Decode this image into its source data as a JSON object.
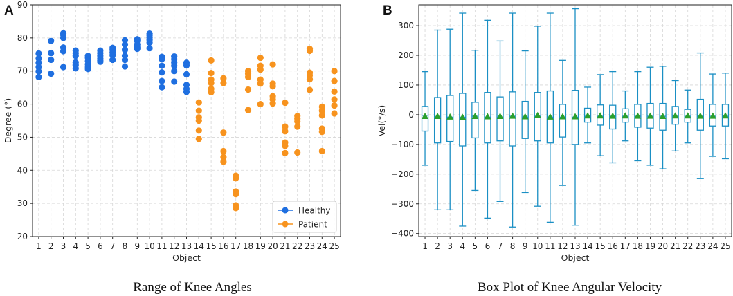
{
  "chart_data": [
    {
      "type": "scatter",
      "panel": "A",
      "caption": "Range of Knee Angles",
      "xlabel": "Object",
      "ylabel": "Degree (°)",
      "xlim": [
        0.5,
        25.5
      ],
      "ylim": [
        20,
        90
      ],
      "yticks": [
        20,
        30,
        40,
        50,
        60,
        70,
        80,
        90
      ],
      "categories": [
        "1",
        "2",
        "3",
        "4",
        "5",
        "6",
        "7",
        "8",
        "9",
        "10",
        "11",
        "12",
        "13",
        "14",
        "15",
        "16",
        "17",
        "18",
        "19",
        "20",
        "21",
        "22",
        "23",
        "24",
        "25"
      ],
      "grid": true,
      "legend_position": "lower-right",
      "series": [
        {
          "name": "Healthy",
          "color": "#1f6fe0",
          "points": [
            [
              1,
              75.3
            ],
            [
              1,
              73.8
            ],
            [
              1,
              72.5
            ],
            [
              1,
              71.2
            ],
            [
              1,
              69.9
            ],
            [
              1,
              68.2
            ],
            [
              2,
              79.1
            ],
            [
              2,
              75.4
            ],
            [
              2,
              73.4
            ],
            [
              2,
              69.2
            ],
            [
              3,
              81.4
            ],
            [
              3,
              80.9
            ],
            [
              3,
              80.0
            ],
            [
              3,
              77.1
            ],
            [
              3,
              76.0
            ],
            [
              3,
              71.2
            ],
            [
              4,
              76.2
            ],
            [
              4,
              75.4
            ],
            [
              4,
              74.6
            ],
            [
              4,
              72.6
            ],
            [
              4,
              71.8
            ],
            [
              4,
              70.8
            ],
            [
              5,
              74.6
            ],
            [
              5,
              74.0
            ],
            [
              5,
              73.0
            ],
            [
              5,
              72.0
            ],
            [
              5,
              71.2
            ],
            [
              5,
              70.6
            ],
            [
              6,
              76.2
            ],
            [
              6,
              75.4
            ],
            [
              6,
              74.6
            ],
            [
              6,
              73.8
            ],
            [
              6,
              73.2
            ],
            [
              6,
              72.8
            ],
            [
              7,
              77.0
            ],
            [
              7,
              76.4
            ],
            [
              7,
              75.6
            ],
            [
              7,
              74.8
            ],
            [
              7,
              73.4
            ],
            [
              8,
              79.3
            ],
            [
              8,
              78.0
            ],
            [
              8,
              76.4
            ],
            [
              8,
              74.6
            ],
            [
              8,
              73.4
            ],
            [
              8,
              71.4
            ],
            [
              9,
              79.6
            ],
            [
              9,
              79.1
            ],
            [
              9,
              78.0
            ],
            [
              9,
              77.2
            ],
            [
              9,
              76.7
            ],
            [
              10,
              81.3
            ],
            [
              10,
              80.8
            ],
            [
              10,
              80.1
            ],
            [
              10,
              79.4
            ],
            [
              10,
              78.6
            ],
            [
              10,
              76.9
            ],
            [
              11,
              74.3
            ],
            [
              11,
              73.6
            ],
            [
              11,
              71.6
            ],
            [
              11,
              69.6
            ],
            [
              11,
              67.0
            ],
            [
              11,
              65.1
            ],
            [
              12,
              74.4
            ],
            [
              12,
              73.6
            ],
            [
              12,
              72.6
            ],
            [
              12,
              71.6
            ],
            [
              12,
              70.0
            ],
            [
              12,
              66.8
            ],
            [
              13,
              72.5
            ],
            [
              13,
              71.7
            ],
            [
              13,
              69.0
            ],
            [
              13,
              65.8
            ],
            [
              13,
              64.6
            ],
            [
              13,
              63.7
            ]
          ]
        },
        {
          "name": "Patient",
          "color": "#f7931e",
          "points": [
            [
              14,
              60.5
            ],
            [
              14,
              58.0
            ],
            [
              14,
              56.0
            ],
            [
              14,
              55.0
            ],
            [
              14,
              52.0
            ],
            [
              14,
              49.5
            ],
            [
              15,
              73.2
            ],
            [
              15,
              69.4
            ],
            [
              15,
              67.4
            ],
            [
              15,
              66.4
            ],
            [
              15,
              64.6
            ],
            [
              15,
              63.6
            ],
            [
              16,
              67.8
            ],
            [
              16,
              66.4
            ],
            [
              16,
              51.4
            ],
            [
              16,
              45.8
            ],
            [
              16,
              44.0
            ],
            [
              16,
              42.6
            ],
            [
              17,
              38.4
            ],
            [
              17,
              37.6
            ],
            [
              17,
              33.6
            ],
            [
              17,
              32.8
            ],
            [
              17,
              29.4
            ],
            [
              17,
              28.6
            ],
            [
              18,
              70.0
            ],
            [
              18,
              69.2
            ],
            [
              18,
              68.2
            ],
            [
              18,
              64.4
            ],
            [
              18,
              58.2
            ],
            [
              19,
              74.0
            ],
            [
              19,
              71.6
            ],
            [
              19,
              70.4
            ],
            [
              19,
              67.4
            ],
            [
              19,
              66.2
            ],
            [
              19,
              60.0
            ],
            [
              20,
              72.0
            ],
            [
              20,
              66.2
            ],
            [
              20,
              65.4
            ],
            [
              20,
              62.4
            ],
            [
              20,
              61.4
            ],
            [
              20,
              60.2
            ],
            [
              21,
              60.4
            ],
            [
              21,
              53.2
            ],
            [
              21,
              51.8
            ],
            [
              21,
              48.4
            ],
            [
              21,
              47.4
            ],
            [
              21,
              45.2
            ],
            [
              22,
              56.4
            ],
            [
              22,
              55.6
            ],
            [
              22,
              54.8
            ],
            [
              22,
              53.2
            ],
            [
              22,
              45.4
            ],
            [
              23,
              76.7
            ],
            [
              23,
              76.1
            ],
            [
              23,
              69.5
            ],
            [
              23,
              68.7
            ],
            [
              23,
              67.5
            ],
            [
              23,
              64.3
            ],
            [
              24,
              59.2
            ],
            [
              24,
              58.0
            ],
            [
              24,
              56.6
            ],
            [
              24,
              52.6
            ],
            [
              24,
              51.6
            ],
            [
              24,
              45.8
            ],
            [
              25,
              70.0
            ],
            [
              25,
              67.0
            ],
            [
              25,
              63.8
            ],
            [
              25,
              61.4
            ],
            [
              25,
              59.6
            ],
            [
              25,
              57.2
            ]
          ]
        }
      ]
    },
    {
      "type": "box",
      "panel": "B",
      "caption": "Box Plot of Knee Angular Velocity",
      "xlabel": "Object",
      "ylabel": "Vel(°/s)",
      "xlim": [
        0.5,
        25.5
      ],
      "ylim": [
        -410,
        370
      ],
      "yticks": [
        -400,
        -300,
        -200,
        -100,
        0,
        100,
        200,
        300
      ],
      "categories": [
        "1",
        "2",
        "3",
        "4",
        "5",
        "6",
        "7",
        "8",
        "9",
        "10",
        "11",
        "12",
        "13",
        "14",
        "15",
        "16",
        "17",
        "18",
        "19",
        "20",
        "21",
        "22",
        "23",
        "24",
        "25"
      ],
      "grid": true,
      "box_color": "#1a8fc4",
      "mean_color": "#2ca02c",
      "boxes": [
        {
          "min": -170,
          "q1": -55,
          "median": -2,
          "q3": 28,
          "max": 145,
          "mean": -5
        },
        {
          "min": -320,
          "q1": -95,
          "median": -8,
          "q3": 58,
          "max": 285,
          "mean": -5
        },
        {
          "min": -320,
          "q1": -90,
          "median": -8,
          "q3": 65,
          "max": 288,
          "mean": -7
        },
        {
          "min": -375,
          "q1": -105,
          "median": -8,
          "q3": 72,
          "max": 342,
          "mean": -8
        },
        {
          "min": -255,
          "q1": -78,
          "median": -5,
          "q3": 42,
          "max": 217,
          "mean": -5
        },
        {
          "min": -348,
          "q1": -95,
          "median": -8,
          "q3": 75,
          "max": 318,
          "mean": -6
        },
        {
          "min": -292,
          "q1": -88,
          "median": -8,
          "q3": 60,
          "max": 248,
          "mean": -5
        },
        {
          "min": -378,
          "q1": -105,
          "median": -5,
          "q3": 77,
          "max": 342,
          "mean": -4
        },
        {
          "min": -262,
          "q1": -80,
          "median": -8,
          "q3": 45,
          "max": 215,
          "mean": -6
        },
        {
          "min": -308,
          "q1": -88,
          "median": -5,
          "q3": 75,
          "max": 298,
          "mean": -2
        },
        {
          "min": -362,
          "q1": -95,
          "median": -8,
          "q3": 80,
          "max": 342,
          "mean": -7
        },
        {
          "min": -238,
          "q1": -75,
          "median": -8,
          "q3": 35,
          "max": 183,
          "mean": -6
        },
        {
          "min": -372,
          "q1": -100,
          "median": -8,
          "q3": 82,
          "max": 357,
          "mean": -6
        },
        {
          "min": -95,
          "q1": -25,
          "median": -5,
          "q3": 22,
          "max": 93,
          "mean": -3
        },
        {
          "min": -138,
          "q1": -35,
          "median": -5,
          "q3": 33,
          "max": 135,
          "mean": -3
        },
        {
          "min": -162,
          "q1": -48,
          "median": -5,
          "q3": 32,
          "max": 145,
          "mean": -4
        },
        {
          "min": -88,
          "q1": -25,
          "median": -5,
          "q3": 20,
          "max": 80,
          "mean": -3
        },
        {
          "min": -155,
          "q1": -42,
          "median": -5,
          "q3": 35,
          "max": 145,
          "mean": -4
        },
        {
          "min": -170,
          "q1": -45,
          "median": -5,
          "q3": 38,
          "max": 160,
          "mean": -4
        },
        {
          "min": -182,
          "q1": -52,
          "median": -5,
          "q3": 38,
          "max": 163,
          "mean": -5
        },
        {
          "min": -122,
          "q1": -32,
          "median": -5,
          "q3": 28,
          "max": 115,
          "mean": -3
        },
        {
          "min": -95,
          "q1": -25,
          "median": -5,
          "q3": 18,
          "max": 83,
          "mean": -3
        },
        {
          "min": -215,
          "q1": -52,
          "median": -5,
          "q3": 52,
          "max": 208,
          "mean": -4
        },
        {
          "min": -140,
          "q1": -38,
          "median": -5,
          "q3": 35,
          "max": 137,
          "mean": -4
        },
        {
          "min": -148,
          "q1": -38,
          "median": -5,
          "q3": 35,
          "max": 140,
          "mean": -3
        }
      ]
    }
  ]
}
